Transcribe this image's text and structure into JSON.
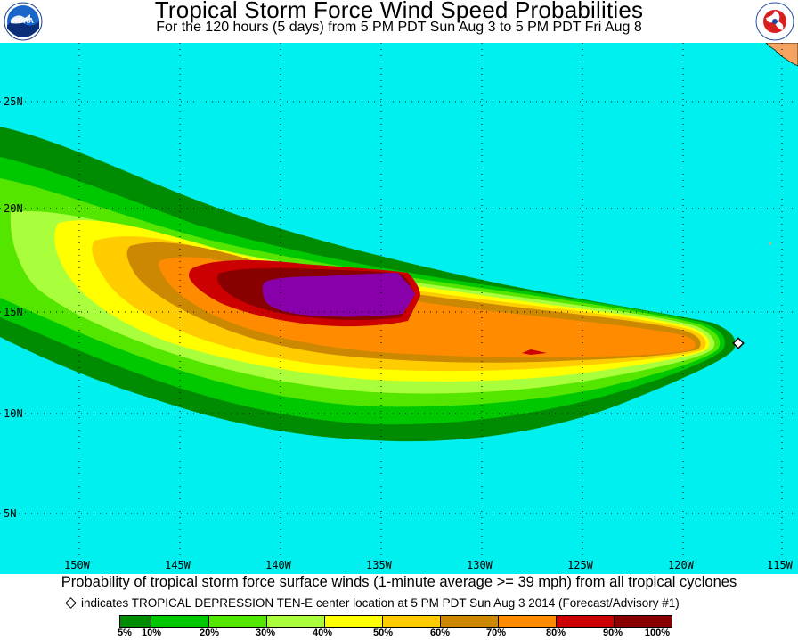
{
  "header": {
    "title": "Tropical Storm Force Wind Speed Probabilities",
    "subtitle": "For the 120 hours (5 days) from 5 PM PDT Sun Aug 3 to 5 PM PDT Fri Aug 8",
    "left_logo_text": "NOAA",
    "right_logo_text": "NATIONAL WEATHER SERVICE"
  },
  "map": {
    "ocean_color": "#00f0f0",
    "land_color": "#f4a460",
    "lat_labels": [
      "25N",
      "20N",
      "15N",
      "10N",
      "5N"
    ],
    "lon_labels": [
      "150W",
      "145W",
      "140W",
      "135W",
      "130W",
      "125W",
      "120W",
      "115W"
    ],
    "storm_center": {
      "lat": 13.5,
      "lon": -116.2
    }
  },
  "footer": {
    "caption": "Probability of tropical storm force surface winds (1-minute average >= 39 mph) from all tropical cyclones",
    "note": "indicates TROPICAL DEPRESSION TEN-E center location at 5 PM PDT Sun Aug 3 2014 (Forecast/Advisory #1)"
  },
  "legend": {
    "labels": [
      "5%",
      "10%",
      "20%",
      "30%",
      "40%",
      "50%",
      "60%",
      "70%",
      "80%",
      "90%",
      "100%"
    ],
    "colors": [
      "#008c00",
      "#00c800",
      "#55e600",
      "#aaff3c",
      "#ffff00",
      "#ffcc00",
      "#cc8800",
      "#ff8c00",
      "#cc0000",
      "#880000",
      "#8800aa"
    ]
  }
}
